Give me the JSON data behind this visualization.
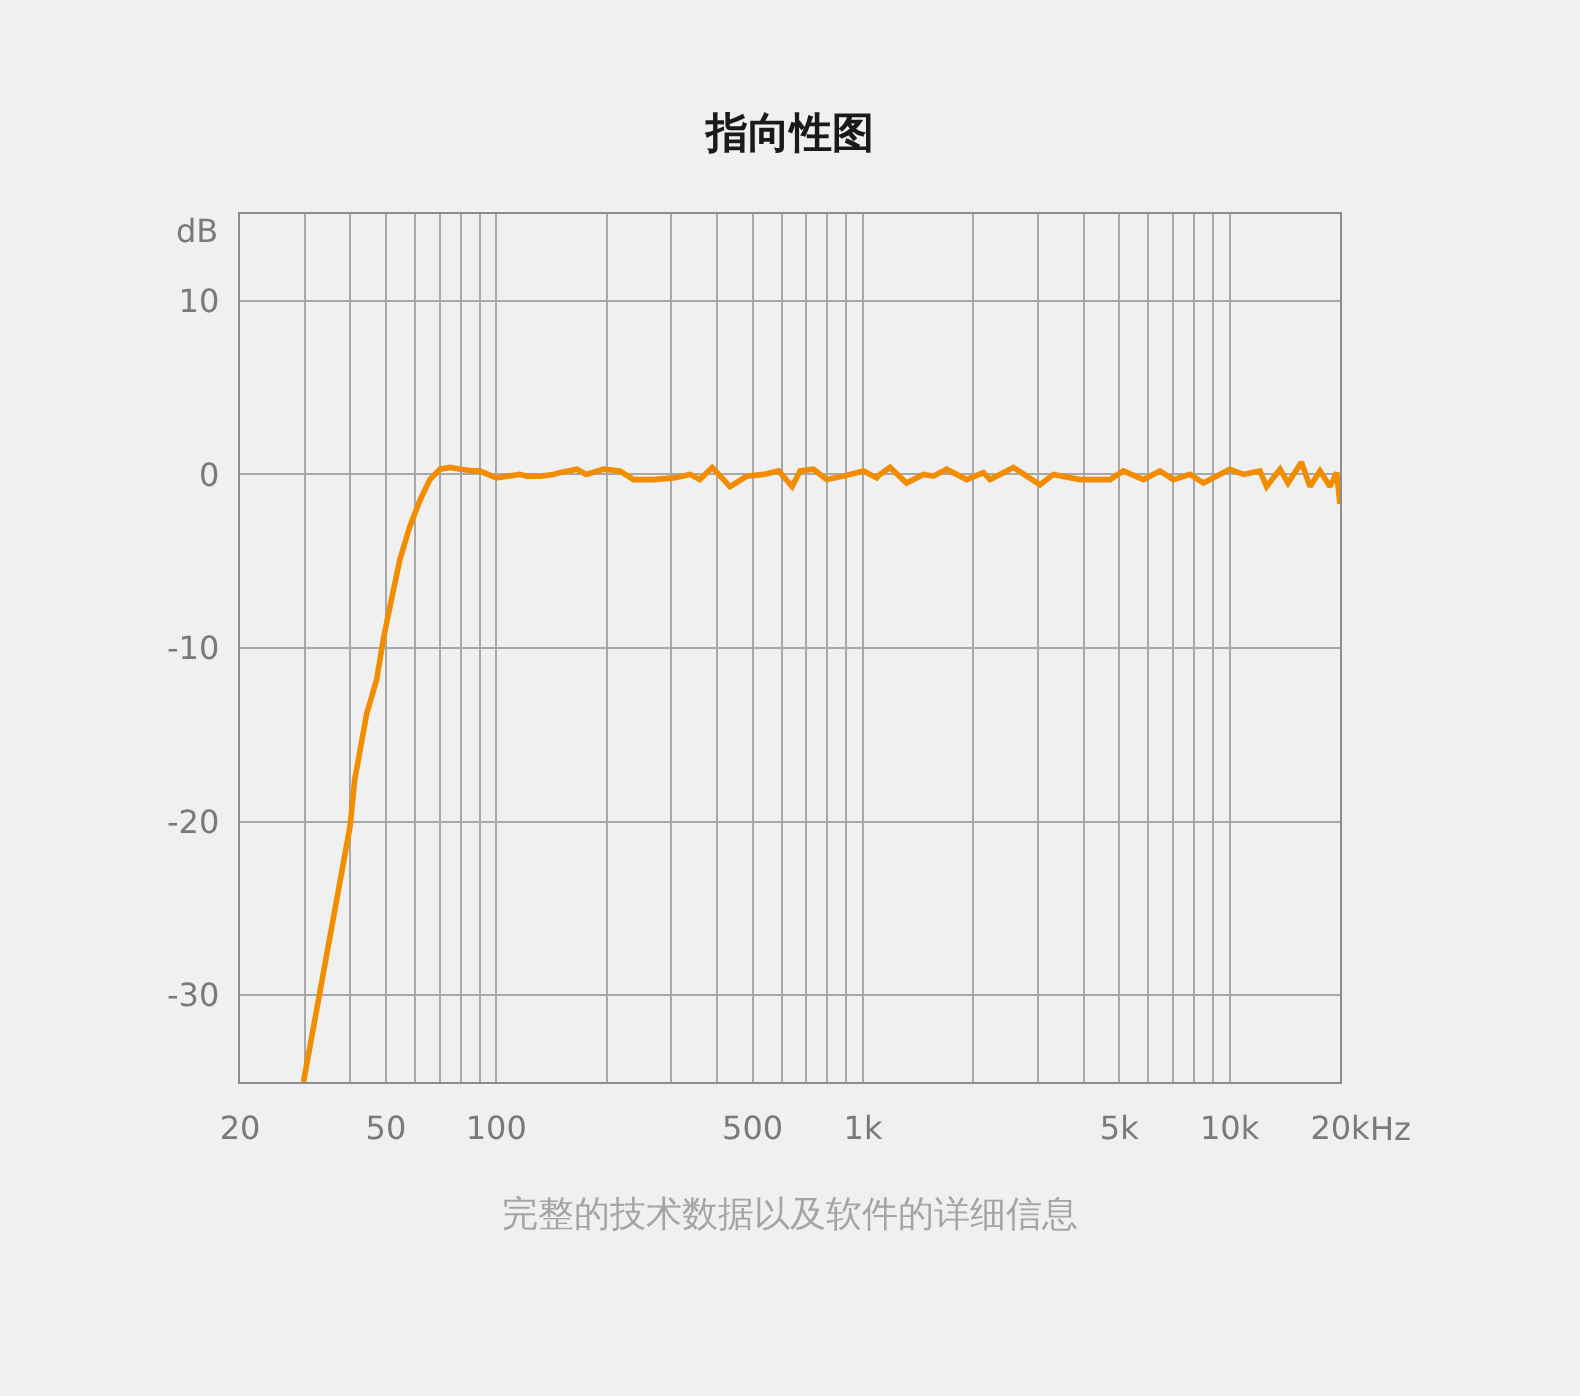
{
  "chart_data": {
    "type": "line",
    "title": "指向性图",
    "ylabel": "dB",
    "xlabel": "Hz",
    "annotations": [
      "完整的技术数据以及软件的详细信息"
    ],
    "x": [
      29.8,
      39.9,
      41.1,
      44.3,
      47.2,
      49.2,
      51.3,
      54.6,
      58.1,
      61.9,
      65.9,
      70.2,
      74.8,
      80,
      86.6,
      90,
      100,
      116,
      121,
      132,
      143,
      149,
      166,
      176,
      196,
      217,
      237,
      268,
      304,
      338,
      359,
      388,
      434,
      482,
      535,
      589,
      641,
      674,
      733,
      796,
      885,
      1003,
      1090,
      1113,
      1185,
      1315,
      1462,
      1557,
      1691,
      1917,
      2130,
      2222,
      2572,
      3040,
      3308,
      3908,
      4252,
      4718,
      5132,
      5820,
      6458,
      7026,
      7798,
      8484,
      10000,
      10904,
      12102,
      12616,
      13724,
      14430,
      15696,
      16566,
      17640,
      18784,
      19580,
      20000
    ],
    "series": [
      {
        "color": "#f28c00",
        "values": [
          -35.0,
          -20.3,
          -17.6,
          -13.8,
          -11.8,
          -9.5,
          -7.6,
          -4.9,
          -3.0,
          -1.5,
          -0.3,
          0.3,
          0.4,
          0.3,
          0.2,
          0.2,
          -0.2,
          0.0,
          -0.1,
          -0.1,
          0.0,
          0.1,
          0.3,
          0.0,
          0.3,
          0.2,
          -0.3,
          -0.3,
          -0.2,
          0.0,
          -0.3,
          0.4,
          -0.7,
          -0.1,
          0.0,
          0.2,
          -0.7,
          0.2,
          0.3,
          -0.3,
          -0.1,
          0.2,
          -0.2,
          0.0,
          0.4,
          -0.5,
          0.0,
          -0.1,
          0.3,
          -0.3,
          0.1,
          -0.3,
          0.4,
          -0.6,
          0.0,
          -0.3,
          -0.3,
          -0.3,
          0.2,
          -0.3,
          0.2,
          -0.3,
          0.0,
          -0.5,
          0.3,
          0.0,
          0.2,
          -0.7,
          0.3,
          -0.5,
          0.7,
          -0.7,
          0.2,
          -0.7,
          0.1,
          -1.7
        ]
      }
    ],
    "xlim": [
      20,
      20000
    ],
    "ylim": [
      -35,
      15
    ],
    "xticks": [
      20,
      {
        "value": 30,
        "label": null
      },
      {
        "value": 40,
        "label": null
      },
      50,
      {
        "value": 60,
        "label": null
      },
      {
        "value": 70,
        "label": null
      },
      {
        "value": 80,
        "label": null
      },
      {
        "value": 90,
        "label": null
      },
      100,
      {
        "value": 200,
        "label": null
      },
      {
        "value": 300,
        "label": null
      },
      {
        "value": 400,
        "label": null
      },
      500,
      {
        "value": 600,
        "label": null
      },
      {
        "value": 700,
        "label": null
      },
      {
        "value": 800,
        "label": null
      },
      {
        "value": 900,
        "label": null
      },
      {
        "value": 1000,
        "label": "1k"
      },
      {
        "value": 2000,
        "label": null
      },
      {
        "value": 3000,
        "label": null
      },
      {
        "value": 4000,
        "label": null
      },
      {
        "value": 5000,
        "label": "5k"
      },
      {
        "value": 6000,
        "label": null
      },
      {
        "value": 7000,
        "label": null
      },
      {
        "value": 8000,
        "label": null
      },
      {
        "value": 9000,
        "label": null
      },
      {
        "value": 10000,
        "label": "10k"
      },
      {
        "value": 20000,
        "label": "20k"
      }
    ],
    "yticks": [
      10,
      0,
      -10,
      -20,
      -30
    ],
    "log": "x",
    "grid": true
  }
}
